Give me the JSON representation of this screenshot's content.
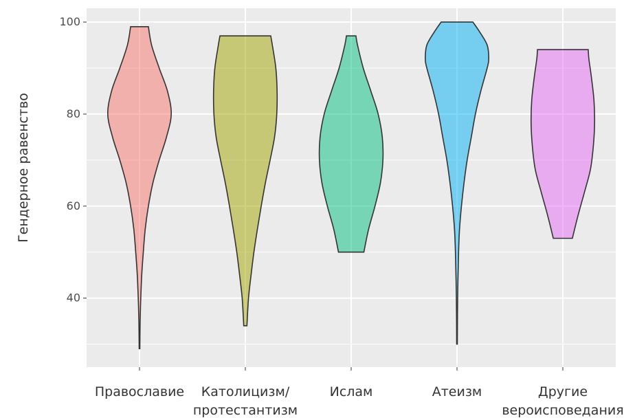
{
  "chart_data": {
    "type": "violin",
    "ylabel": "Гендерное равенство",
    "xlabel": "",
    "ylim": [
      25,
      103
    ],
    "yticks": [
      40,
      60,
      80,
      100
    ],
    "grid": true,
    "categories": [
      "Православие",
      "Католицизм/\nпротестантизм",
      "Ислам",
      "Атеизм",
      "Другие\nвероисповедания"
    ],
    "series": [
      {
        "color": "#F8766D",
        "min": 29,
        "max": 99,
        "density_profile": [
          [
            29,
            0.01
          ],
          [
            35,
            0.02
          ],
          [
            40,
            0.04
          ],
          [
            45,
            0.07
          ],
          [
            50,
            0.12
          ],
          [
            55,
            0.18
          ],
          [
            60,
            0.28
          ],
          [
            65,
            0.42
          ],
          [
            70,
            0.62
          ],
          [
            75,
            0.85
          ],
          [
            80,
            1.0
          ],
          [
            85,
            0.88
          ],
          [
            90,
            0.62
          ],
          [
            95,
            0.38
          ],
          [
            99,
            0.28
          ]
        ]
      },
      {
        "color": "#A3A500",
        "min": 34,
        "max": 97,
        "density_profile": [
          [
            34,
            0.05
          ],
          [
            40,
            0.1
          ],
          [
            45,
            0.18
          ],
          [
            50,
            0.27
          ],
          [
            55,
            0.38
          ],
          [
            60,
            0.5
          ],
          [
            65,
            0.63
          ],
          [
            70,
            0.78
          ],
          [
            75,
            0.92
          ],
          [
            80,
            0.99
          ],
          [
            85,
            1.0
          ],
          [
            90,
            0.96
          ],
          [
            95,
            0.85
          ],
          [
            97,
            0.8
          ]
        ]
      },
      {
        "color": "#00BF7D",
        "min": 50,
        "max": 97,
        "density_profile": [
          [
            50,
            0.4
          ],
          [
            55,
            0.55
          ],
          [
            60,
            0.75
          ],
          [
            65,
            0.92
          ],
          [
            70,
            1.0
          ],
          [
            75,
            0.98
          ],
          [
            80,
            0.85
          ],
          [
            85,
            0.62
          ],
          [
            90,
            0.38
          ],
          [
            95,
            0.2
          ],
          [
            97,
            0.15
          ]
        ]
      },
      {
        "color": "#00B0F6",
        "min": 30,
        "max": 100,
        "density_profile": [
          [
            30,
            0.01
          ],
          [
            40,
            0.02
          ],
          [
            50,
            0.05
          ],
          [
            55,
            0.08
          ],
          [
            60,
            0.14
          ],
          [
            65,
            0.22
          ],
          [
            70,
            0.32
          ],
          [
            75,
            0.45
          ],
          [
            80,
            0.58
          ],
          [
            85,
            0.75
          ],
          [
            90,
            0.95
          ],
          [
            92,
            1.0
          ],
          [
            95,
            0.95
          ],
          [
            98,
            0.7
          ],
          [
            100,
            0.5
          ]
        ]
      },
      {
        "color": "#E76BF3",
        "min": 53,
        "max": 94,
        "density_profile": [
          [
            53,
            0.3
          ],
          [
            58,
            0.48
          ],
          [
            63,
            0.68
          ],
          [
            68,
            0.87
          ],
          [
            73,
            0.96
          ],
          [
            78,
            1.0
          ],
          [
            83,
            0.98
          ],
          [
            88,
            0.9
          ],
          [
            92,
            0.82
          ],
          [
            94,
            0.8
          ]
        ]
      }
    ]
  }
}
